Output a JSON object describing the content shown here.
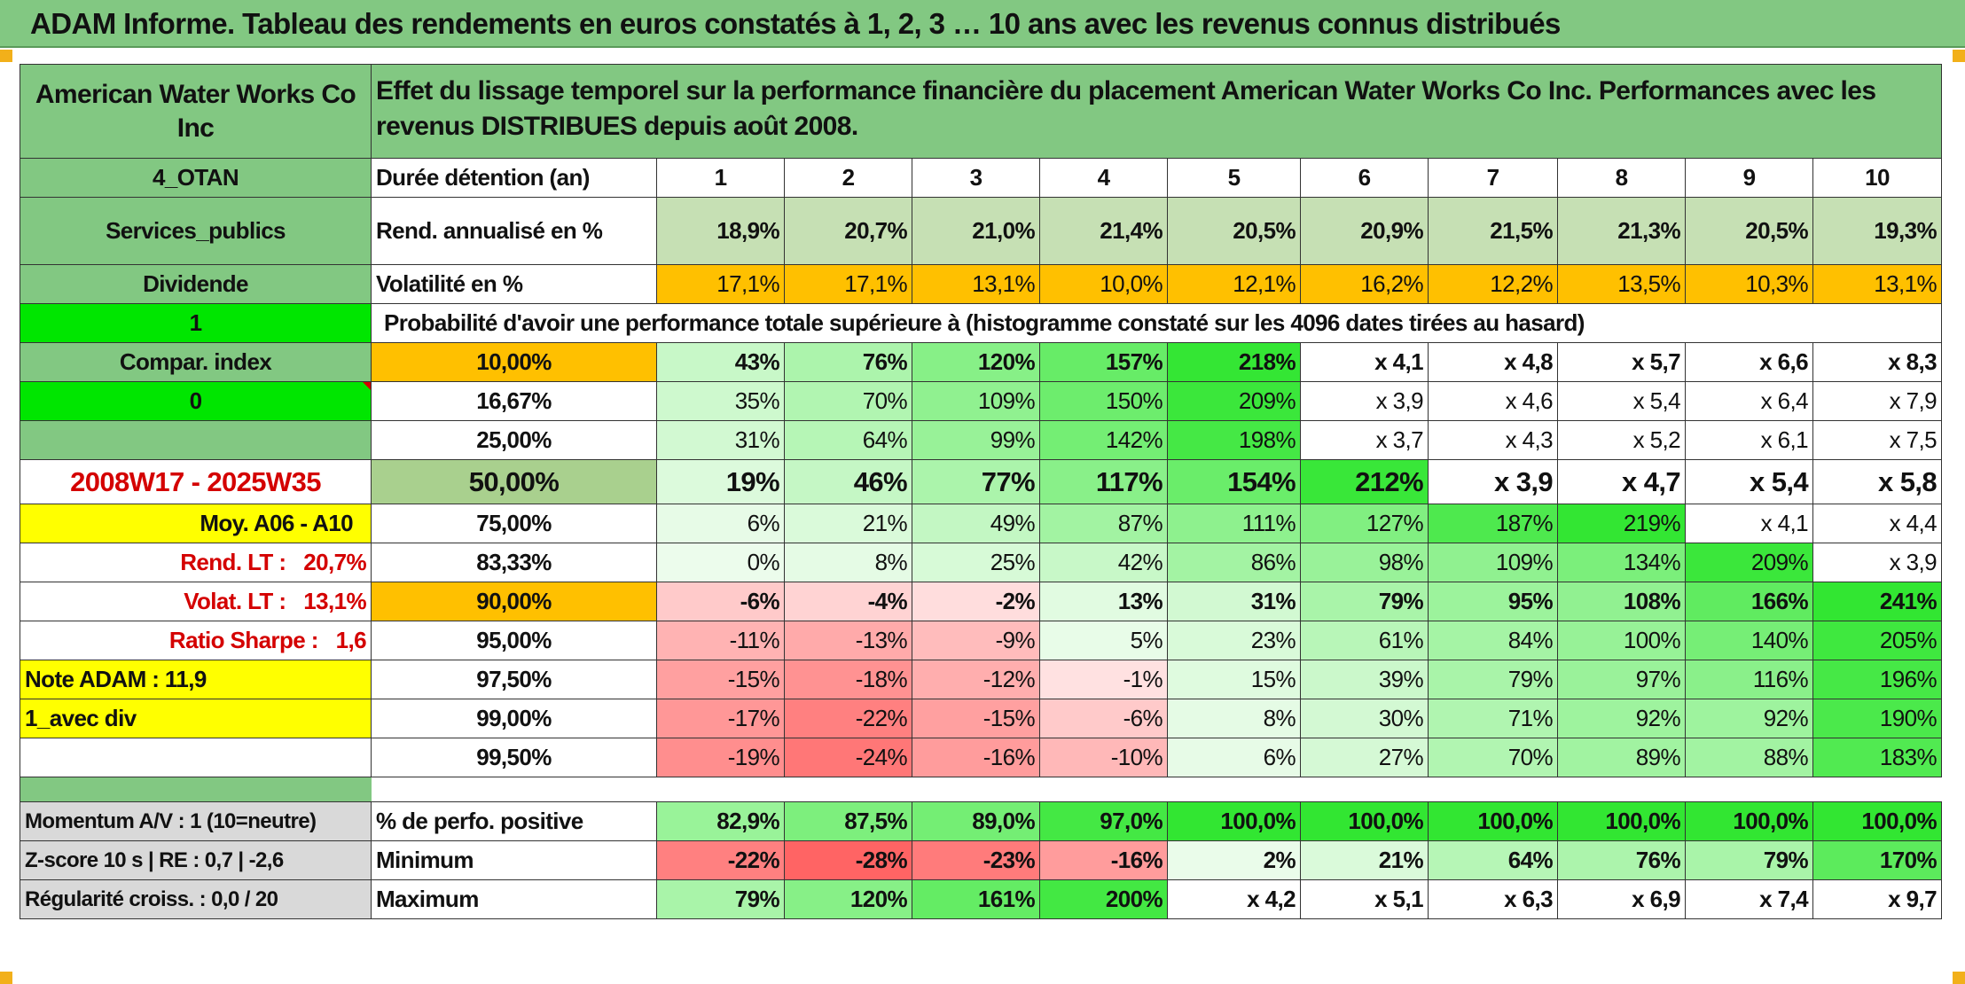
{
  "title": "ADAM Informe. Tableau des rendements en euros constatés à 1, 2, 3 … 10 ans avec les revenus connus distribués",
  "colors": {
    "header_green": "#82c882",
    "orange": "#ffc000",
    "bright_green": "#00e600",
    "yellow": "#ffff00",
    "red_text": "#d40000"
  },
  "left": {
    "company": "American Water Works Co Inc",
    "otan": "4_OTAN",
    "sector": "Services_publics",
    "dividend": "Dividende",
    "one": "1",
    "compar_index": "Compar. index",
    "zero": "0",
    "period": "2008W17 - 2025W35",
    "moy": "Moy. A06 - A10",
    "rend_lt_label": "Rend. LT :",
    "rend_lt_value": "20,7%",
    "volat_lt_label": "Volat. LT :",
    "volat_lt_value": "13,1%",
    "sharpe_label": "Ratio Sharpe :",
    "sharpe_value": "1,6",
    "note_adam": "Note ADAM : 11,9",
    "avec_div": "1_avec div",
    "momentum": "Momentum A/V : 1 (10=neutre)",
    "zscore": "Z-score 10 s | RE : 0,7 | -2,6",
    "regularite": "Régularité croiss. : 0,0 / 20"
  },
  "header_text": "Effet du lissage temporel sur la performance financière du placement American Water Works Co Inc. Performances avec les revenus DISTRIBUES depuis août 2008.",
  "duration_label": "Durée détention (an)",
  "years": [
    "1",
    "2",
    "3",
    "4",
    "5",
    "6",
    "7",
    "8",
    "9",
    "10"
  ],
  "rend_label": "Rend. annualisé en %",
  "rend_values": [
    "18,9%",
    "20,7%",
    "21,0%",
    "21,4%",
    "20,5%",
    "20,9%",
    "21,5%",
    "21,3%",
    "20,5%",
    "19,3%"
  ],
  "vol_label": "Volatilité en %",
  "vol_values": [
    "17,1%",
    "17,1%",
    "13,1%",
    "10,0%",
    "12,1%",
    "16,2%",
    "12,2%",
    "13,5%",
    "10,3%",
    "13,1%"
  ],
  "prob_label": "Probabilité d'avoir une performance totale supérieure à (histogramme constaté sur les 4096 dates tirées au hasard)",
  "prob_rows": [
    {
      "pct": "10,00%",
      "vals": [
        "43%",
        "76%",
        "120%",
        "157%",
        "218%",
        "x 4,1",
        "x 4,8",
        "x 5,7",
        "x 6,6",
        "x 8,3"
      ]
    },
    {
      "pct": "16,67%",
      "vals": [
        "35%",
        "70%",
        "109%",
        "150%",
        "209%",
        "x 3,9",
        "x 4,6",
        "x 5,4",
        "x 6,4",
        "x 7,9"
      ]
    },
    {
      "pct": "25,00%",
      "vals": [
        "31%",
        "64%",
        "99%",
        "142%",
        "198%",
        "x 3,7",
        "x 4,3",
        "x 5,2",
        "x 6,1",
        "x 7,5"
      ]
    },
    {
      "pct": "50,00%",
      "vals": [
        "19%",
        "46%",
        "77%",
        "117%",
        "154%",
        "212%",
        "x 3,9",
        "x 4,7",
        "x 5,4",
        "x 5,8"
      ]
    },
    {
      "pct": "75,00%",
      "vals": [
        "6%",
        "21%",
        "49%",
        "87%",
        "111%",
        "127%",
        "187%",
        "219%",
        "x 4,1",
        "x 4,4"
      ]
    },
    {
      "pct": "83,33%",
      "vals": [
        "0%",
        "8%",
        "25%",
        "42%",
        "86%",
        "98%",
        "109%",
        "134%",
        "209%",
        "x 3,9"
      ]
    },
    {
      "pct": "90,00%",
      "vals": [
        "-6%",
        "-4%",
        "-2%",
        "13%",
        "31%",
        "79%",
        "95%",
        "108%",
        "166%",
        "241%"
      ]
    },
    {
      "pct": "95,00%",
      "vals": [
        "-11%",
        "-13%",
        "-9%",
        "5%",
        "23%",
        "61%",
        "84%",
        "100%",
        "140%",
        "205%"
      ]
    },
    {
      "pct": "97,50%",
      "vals": [
        "-15%",
        "-18%",
        "-12%",
        "-1%",
        "15%",
        "39%",
        "79%",
        "97%",
        "116%",
        "196%"
      ]
    },
    {
      "pct": "99,00%",
      "vals": [
        "-17%",
        "-22%",
        "-15%",
        "-6%",
        "8%",
        "30%",
        "71%",
        "92%",
        "92%",
        "190%"
      ]
    },
    {
      "pct": "99,50%",
      "vals": [
        "-19%",
        "-24%",
        "-16%",
        "-10%",
        "6%",
        "27%",
        "70%",
        "89%",
        "88%",
        "183%"
      ]
    }
  ],
  "positive_label": "% de perfo. positive",
  "positive_values": [
    "82,9%",
    "87,5%",
    "89,0%",
    "97,0%",
    "100,0%",
    "100,0%",
    "100,0%",
    "100,0%",
    "100,0%",
    "100,0%"
  ],
  "minimum_label": "Minimum",
  "minimum_values": [
    "-22%",
    "-28%",
    "-23%",
    "-16%",
    "2%",
    "21%",
    "64%",
    "76%",
    "79%",
    "170%"
  ],
  "maximum_label": "Maximum",
  "maximum_values": [
    "79%",
    "120%",
    "161%",
    "200%",
    "x 4,2",
    "x 5,1",
    "x 6,3",
    "x 6,9",
    "x 7,4",
    "x 9,7"
  ]
}
